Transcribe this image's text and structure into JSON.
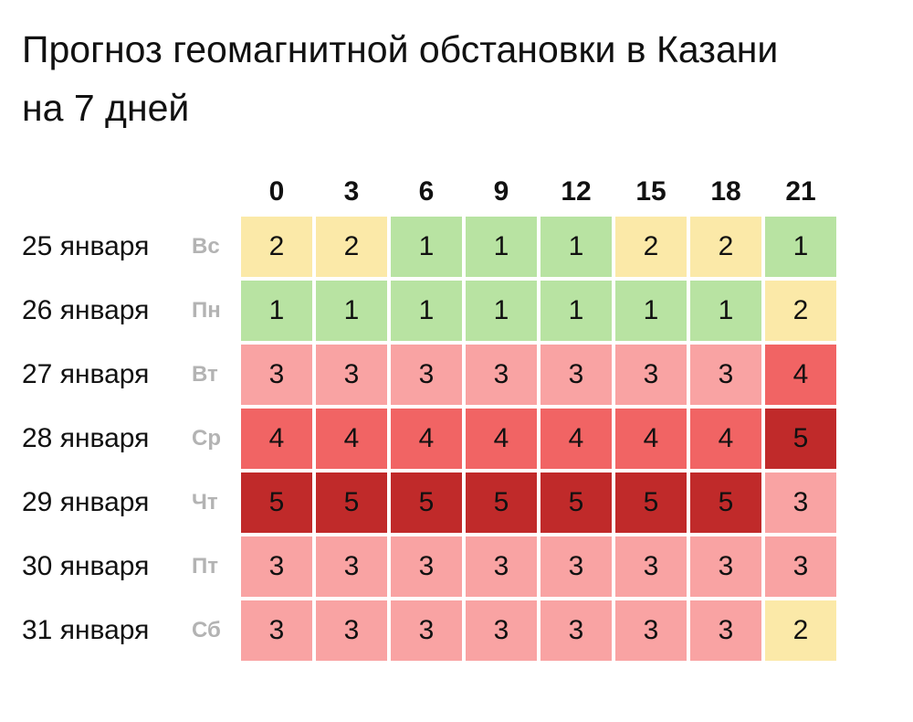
{
  "title_lines": [
    "Прогноз геомагнитной обстановки в Казани",
    "на 7 дней"
  ],
  "chart_data": {
    "type": "heatmap",
    "title": "Прогноз геомагнитной обстановки в Казани на 7 дней",
    "x": [
      "0",
      "3",
      "6",
      "9",
      "12",
      "15",
      "18",
      "21"
    ],
    "rows": [
      {
        "date": "25 января",
        "day": "Вс",
        "values": [
          2,
          2,
          1,
          1,
          1,
          2,
          2,
          1
        ]
      },
      {
        "date": "26 января",
        "day": "Пн",
        "values": [
          1,
          1,
          1,
          1,
          1,
          1,
          1,
          2
        ]
      },
      {
        "date": "27 января",
        "day": "Вт",
        "values": [
          3,
          3,
          3,
          3,
          3,
          3,
          3,
          4
        ]
      },
      {
        "date": "28 января",
        "day": "Ср",
        "values": [
          4,
          4,
          4,
          4,
          4,
          4,
          4,
          5
        ]
      },
      {
        "date": "29 января",
        "day": "Чт",
        "values": [
          5,
          5,
          5,
          5,
          5,
          5,
          5,
          3
        ]
      },
      {
        "date": "30 января",
        "day": "Пт",
        "values": [
          3,
          3,
          3,
          3,
          3,
          3,
          3,
          3
        ]
      },
      {
        "date": "31 января",
        "day": "Сб",
        "values": [
          3,
          3,
          3,
          3,
          3,
          3,
          3,
          2
        ]
      }
    ],
    "color_scale": {
      "1": "#b8e3a2",
      "2": "#fbe9a8",
      "3": "#f9a3a3",
      "4": "#f16464",
      "5": "#c02a2a"
    }
  }
}
